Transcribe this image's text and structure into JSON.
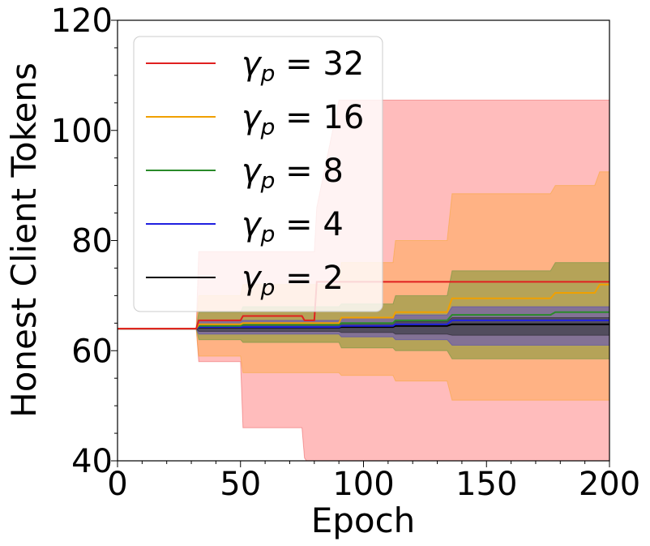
{
  "chart_data": {
    "type": "line",
    "xlabel": "Epoch",
    "ylabel": "Honest Client Tokens",
    "xlim": [
      0,
      200
    ],
    "ylim": [
      40,
      120
    ],
    "xticks": [
      0,
      50,
      100,
      150,
      200
    ],
    "yticks": [
      40,
      60,
      80,
      100,
      120
    ],
    "xtick_labels": [
      "0",
      "50",
      "100",
      "150",
      "200"
    ],
    "ytick_labels": [
      "40",
      "60",
      "80",
      "100",
      "120"
    ],
    "legend": {
      "position": "upper-left",
      "symbol": "γ",
      "subscript": "p",
      "equals": "="
    },
    "series": [
      {
        "name": "γp = 32",
        "value_label": "32",
        "color": "#e02020",
        "band_color": "#ffb0b0",
        "x": [
          0,
          32,
          33,
          50,
          51,
          75,
          76,
          80,
          81,
          90,
          112,
          113,
          135,
          136,
          178,
          195,
          200
        ],
        "mean": [
          64,
          64,
          65.5,
          65.5,
          66.3,
          66.3,
          65.5,
          65.5,
          72.5,
          72.5,
          72.5,
          72.5,
          72.5,
          72.5,
          72.5,
          72.5,
          72.5
        ],
        "upper": [
          64,
          64,
          78,
          78,
          78,
          78,
          78,
          78,
          86,
          105.5,
          105.5,
          105.5,
          105.5,
          105.5,
          105.5,
          105.5,
          105.5
        ],
        "lower": [
          64,
          64,
          58,
          58,
          46,
          46,
          40.5,
          38,
          38,
          38,
          38,
          38,
          38,
          38,
          38,
          38,
          38
        ]
      },
      {
        "name": "γp = 16",
        "value_label": "16",
        "color": "#f0a000",
        "band_color": "#ffb07a",
        "x": [
          0,
          32,
          33,
          50,
          51,
          90,
          91,
          112,
          113,
          134,
          136,
          176,
          178,
          194,
          196,
          200
        ],
        "mean": [
          64,
          64,
          64.8,
          64.8,
          65,
          65,
          66,
          66,
          67,
          67,
          69.5,
          69.5,
          70.5,
          70.5,
          72,
          72
        ],
        "upper": [
          64,
          64,
          70,
          70,
          72,
          72,
          76,
          76,
          80,
          80,
          88.5,
          88.5,
          90,
          90,
          92.5,
          92.5
        ],
        "lower": [
          64,
          64,
          59,
          59,
          56,
          56,
          55.5,
          55.5,
          54.5,
          54.5,
          51,
          51,
          51,
          51,
          51,
          51
        ]
      },
      {
        "name": "γp = 8",
        "value_label": "8",
        "color": "#2a8a2a",
        "band_color": "#a8a050",
        "x": [
          0,
          32,
          33,
          50,
          51,
          90,
          91,
          112,
          113,
          134,
          136,
          176,
          178,
          200
        ],
        "mean": [
          64,
          64,
          64.5,
          64.5,
          64.7,
          64.7,
          65,
          65,
          65.5,
          65.5,
          66.5,
          66.5,
          67,
          67
        ],
        "upper": [
          64,
          64,
          67,
          67,
          68,
          68,
          68.5,
          68.5,
          70,
          70,
          74.5,
          74.5,
          76,
          76
        ],
        "lower": [
          64,
          64,
          62,
          62,
          61.5,
          61.5,
          60.5,
          60.5,
          60,
          60,
          58.5,
          58.5,
          58.5,
          58.5
        ]
      },
      {
        "name": "γp = 4",
        "value_label": "4",
        "color": "#2020e0",
        "band_color": "#7a6aa0",
        "x": [
          0,
          32,
          33,
          90,
          91,
          112,
          113,
          134,
          136,
          200
        ],
        "mean": [
          64,
          64,
          64.3,
          64.3,
          64.5,
          64.5,
          64.8,
          64.8,
          65.5,
          65.5
        ],
        "upper": [
          64,
          64,
          65.5,
          65.5,
          66,
          66,
          66.5,
          66.5,
          68,
          68
        ],
        "lower": [
          64,
          64,
          63,
          63,
          62.5,
          62.5,
          62,
          62,
          61,
          61
        ]
      },
      {
        "name": "γp = 2",
        "value_label": "2",
        "color": "#000000",
        "band_color": "#4a4655",
        "x": [
          0,
          32,
          33,
          90,
          91,
          112,
          113,
          134,
          136,
          200
        ],
        "mean": [
          64,
          64,
          64.2,
          64.2,
          64.3,
          64.3,
          64.5,
          64.5,
          64.8,
          64.8
        ],
        "upper": [
          64,
          64,
          64.8,
          64.8,
          65,
          65,
          65.3,
          65.3,
          66,
          66
        ],
        "lower": [
          64,
          64,
          63.5,
          63.5,
          63.3,
          63.3,
          63,
          63,
          62.8,
          62.8
        ]
      }
    ]
  }
}
